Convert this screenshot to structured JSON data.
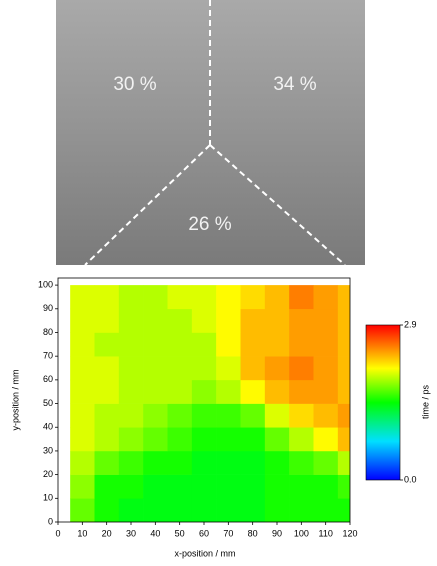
{
  "photo": {
    "labels": [
      "30 %",
      "34 %",
      "26 %"
    ]
  },
  "chart_data": {
    "type": "heatmap",
    "xlabel": "x-position / mm",
    "ylabel": "y-position / mm",
    "xlim": [
      0,
      120
    ],
    "ylim": [
      0,
      103
    ],
    "xticks": [
      0,
      10,
      20,
      30,
      40,
      50,
      60,
      70,
      80,
      90,
      100,
      110,
      120
    ],
    "yticks": [
      0,
      10,
      20,
      30,
      40,
      50,
      60,
      70,
      80,
      90,
      100
    ],
    "x": [
      10,
      20,
      30,
      40,
      50,
      60,
      70,
      80,
      90,
      100,
      110,
      120
    ],
    "y": [
      5,
      15,
      25,
      35,
      45,
      55,
      65,
      75,
      85,
      95
    ],
    "z": [
      [
        1.7,
        1.5,
        1.4,
        1.4,
        1.4,
        1.4,
        1.4,
        1.4,
        1.5,
        1.5,
        1.5,
        1.5
      ],
      [
        1.8,
        1.5,
        1.5,
        1.4,
        1.4,
        1.4,
        1.4,
        1.4,
        1.5,
        1.5,
        1.5,
        1.6
      ],
      [
        1.9,
        1.7,
        1.6,
        1.5,
        1.5,
        1.4,
        1.4,
        1.4,
        1.5,
        1.6,
        1.7,
        1.9
      ],
      [
        2.0,
        1.9,
        1.8,
        1.7,
        1.6,
        1.5,
        1.5,
        1.5,
        1.7,
        1.9,
        2.1,
        2.3
      ],
      [
        2.0,
        1.9,
        1.9,
        1.8,
        1.7,
        1.6,
        1.6,
        1.7,
        2.0,
        2.2,
        2.3,
        2.4
      ],
      [
        2.0,
        2.0,
        1.9,
        1.9,
        1.9,
        1.8,
        1.9,
        2.1,
        2.3,
        2.4,
        2.4,
        2.3
      ],
      [
        2.0,
        2.0,
        1.9,
        1.9,
        1.9,
        1.9,
        2.0,
        2.3,
        2.4,
        2.5,
        2.4,
        2.3
      ],
      [
        2.0,
        1.9,
        1.9,
        1.9,
        1.9,
        1.9,
        2.1,
        2.3,
        2.3,
        2.4,
        2.4,
        2.3
      ],
      [
        2.0,
        2.0,
        1.9,
        1.9,
        1.9,
        2.0,
        2.1,
        2.3,
        2.3,
        2.4,
        2.4,
        2.3
      ],
      [
        2.0,
        2.0,
        1.9,
        1.9,
        2.0,
        2.0,
        2.1,
        2.2,
        2.3,
        2.5,
        2.4,
        2.3
      ]
    ],
    "colorbar": {
      "label": "time / ps",
      "lim": [
        0,
        2.9
      ],
      "ticks": [
        {
          "value": 0,
          "label": "0.0"
        },
        2.9
      ]
    }
  }
}
